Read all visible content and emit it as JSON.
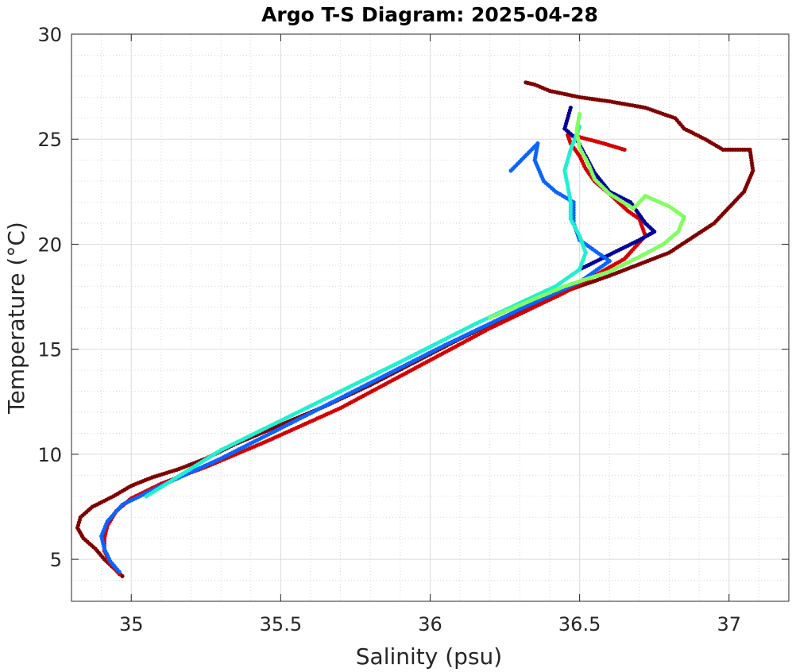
{
  "chart_data": {
    "type": "scatter",
    "title": "Argo T-S Diagram: 2025-04-28",
    "xlabel": "Salinity (psu)",
    "ylabel": "Temperature (°C)",
    "xlim": [
      34.8,
      37.2
    ],
    "ylim": [
      3,
      30
    ],
    "x_ticks": [
      35,
      35.5,
      36,
      36.5,
      37
    ],
    "x_tick_labels": [
      "35",
      "35.5",
      "36",
      "36.5",
      "37"
    ],
    "y_ticks": [
      5,
      10,
      15,
      20,
      25,
      30
    ],
    "y_tick_labels": [
      "5",
      "10",
      "15",
      "20",
      "25",
      "30"
    ],
    "grid": true,
    "minor_grid": true,
    "legend": "none",
    "series": [
      {
        "color": "#800000",
        "points": [
          [
            34.97,
            4.2
          ],
          [
            34.94,
            4.6
          ],
          [
            34.91,
            5.0
          ],
          [
            34.88,
            5.5
          ],
          [
            34.84,
            6.0
          ],
          [
            34.82,
            6.5
          ],
          [
            34.83,
            7.0
          ],
          [
            34.87,
            7.5
          ],
          [
            34.94,
            8.0
          ],
          [
            35.0,
            8.5
          ],
          [
            35.07,
            8.9
          ],
          [
            35.16,
            9.3
          ],
          [
            35.25,
            9.8
          ],
          [
            35.35,
            10.5
          ],
          [
            35.5,
            11.4
          ],
          [
            35.65,
            12.3
          ],
          [
            35.8,
            13.3
          ],
          [
            35.95,
            14.4
          ],
          [
            36.1,
            15.5
          ],
          [
            36.25,
            16.5
          ],
          [
            36.4,
            17.5
          ],
          [
            36.6,
            18.5
          ],
          [
            36.8,
            19.6
          ],
          [
            36.95,
            21.0
          ],
          [
            37.05,
            22.5
          ],
          [
            37.08,
            23.5
          ],
          [
            37.07,
            24.5
          ],
          [
            36.98,
            24.5
          ],
          [
            36.92,
            25.0
          ],
          [
            36.85,
            25.5
          ],
          [
            36.82,
            26.0
          ],
          [
            36.72,
            26.5
          ],
          [
            36.6,
            26.8
          ],
          [
            36.5,
            27.0
          ],
          [
            36.4,
            27.3
          ],
          [
            36.35,
            27.6
          ],
          [
            36.32,
            27.7
          ]
        ]
      },
      {
        "color": "#d40000",
        "points": [
          [
            34.96,
            4.3
          ],
          [
            34.93,
            4.8
          ],
          [
            34.91,
            5.4
          ],
          [
            34.91,
            6.0
          ],
          [
            34.92,
            6.6
          ],
          [
            34.95,
            7.3
          ],
          [
            35.0,
            7.9
          ],
          [
            35.1,
            8.6
          ],
          [
            35.25,
            9.4
          ],
          [
            35.45,
            10.6
          ],
          [
            35.7,
            12.2
          ],
          [
            35.95,
            14.1
          ],
          [
            36.2,
            16.0
          ],
          [
            36.45,
            17.7
          ],
          [
            36.65,
            19.3
          ],
          [
            36.72,
            20.4
          ],
          [
            36.7,
            21.2
          ],
          [
            36.66,
            21.6
          ],
          [
            36.6,
            22.4
          ],
          [
            36.55,
            23.0
          ],
          [
            36.52,
            23.6
          ],
          [
            36.5,
            24.2
          ],
          [
            36.47,
            24.8
          ],
          [
            36.46,
            25.2
          ],
          [
            36.5,
            25.1
          ],
          [
            36.58,
            24.8
          ],
          [
            36.65,
            24.5
          ]
        ]
      },
      {
        "color": "#000099",
        "points": [
          [
            36.47,
            26.5
          ],
          [
            36.46,
            26.0
          ],
          [
            36.45,
            25.5
          ],
          [
            36.49,
            25.0
          ],
          [
            36.52,
            24.2
          ],
          [
            36.55,
            23.4
          ],
          [
            36.6,
            22.5
          ],
          [
            36.67,
            22.0
          ],
          [
            36.72,
            21.0
          ],
          [
            36.75,
            20.6
          ],
          [
            36.7,
            20.2
          ],
          [
            36.6,
            19.5
          ],
          [
            36.5,
            18.8
          ]
        ]
      },
      {
        "color": "#0a64ff",
        "points": [
          [
            34.96,
            4.4
          ],
          [
            34.93,
            4.9
          ],
          [
            34.91,
            5.5
          ],
          [
            34.9,
            6.1
          ],
          [
            34.92,
            6.8
          ],
          [
            34.97,
            7.6
          ],
          [
            35.1,
            8.5
          ],
          [
            35.3,
            9.8
          ],
          [
            35.55,
            11.6
          ],
          [
            35.8,
            13.4
          ],
          [
            36.05,
            15.2
          ],
          [
            36.3,
            16.9
          ],
          [
            36.5,
            18.2
          ],
          [
            36.6,
            19.2
          ],
          [
            36.5,
            20.2
          ],
          [
            36.48,
            21.0
          ],
          [
            36.48,
            22.0
          ],
          [
            36.42,
            22.5
          ],
          [
            36.38,
            23.0
          ],
          [
            36.35,
            24.0
          ],
          [
            36.36,
            24.8
          ],
          [
            36.27,
            23.5
          ]
        ]
      },
      {
        "color": "#20f0d0",
        "points": [
          [
            35.05,
            8.0
          ],
          [
            35.3,
            10.2
          ],
          [
            35.6,
            12.3
          ],
          [
            35.9,
            14.4
          ],
          [
            36.15,
            16.2
          ],
          [
            36.3,
            17.2
          ],
          [
            36.42,
            18.0
          ],
          [
            36.5,
            18.8
          ],
          [
            36.52,
            19.6
          ],
          [
            36.5,
            20.4
          ],
          [
            36.47,
            21.2
          ],
          [
            36.47,
            22.0
          ],
          [
            36.46,
            22.8
          ],
          [
            36.45,
            23.5
          ],
          [
            36.47,
            24.5
          ],
          [
            36.5,
            25.6
          ]
        ]
      },
      {
        "color": "#80ff60",
        "points": [
          [
            36.2,
            16.5
          ],
          [
            36.45,
            18.0
          ],
          [
            36.6,
            18.7
          ],
          [
            36.7,
            19.4
          ],
          [
            36.78,
            20.0
          ],
          [
            36.83,
            20.6
          ],
          [
            36.85,
            21.3
          ],
          [
            36.8,
            21.8
          ],
          [
            36.72,
            22.3
          ],
          [
            36.68,
            21.7
          ],
          [
            36.6,
            22.4
          ],
          [
            36.55,
            23.1
          ],
          [
            36.53,
            23.8
          ],
          [
            36.5,
            24.6
          ],
          [
            36.49,
            25.4
          ],
          [
            36.5,
            26.2
          ]
        ]
      }
    ]
  }
}
